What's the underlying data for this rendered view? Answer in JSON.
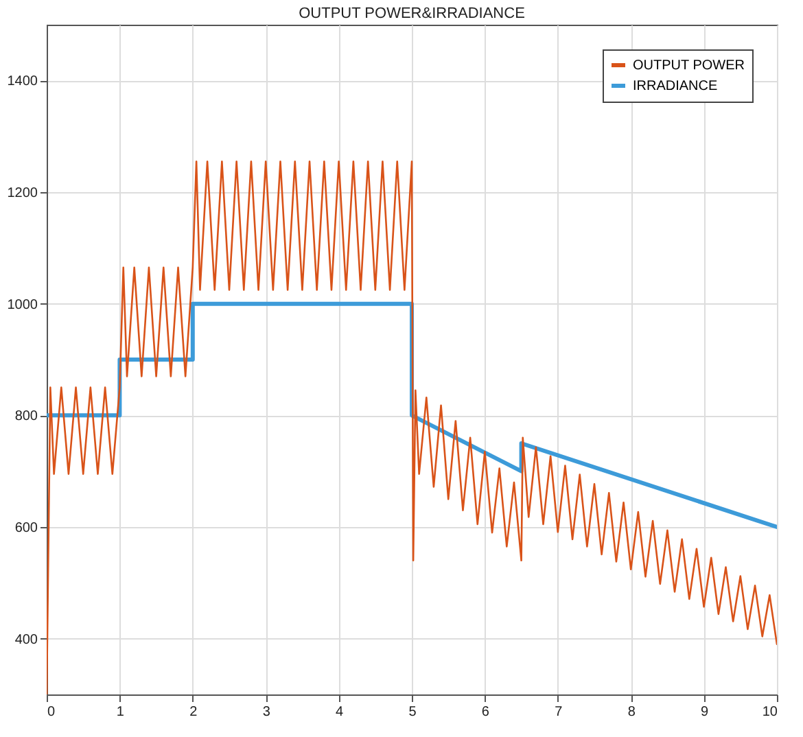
{
  "chart_data": {
    "type": "line",
    "title": "OUTPUT POWER&IRRADIANCE",
    "xlim": [
      0,
      10
    ],
    "xticks": [
      0,
      1,
      2,
      3,
      4,
      5,
      6,
      7,
      8,
      9,
      10
    ],
    "ylim": [
      300,
      1500
    ],
    "yticks": [
      400,
      600,
      800,
      1000,
      1200,
      1400
    ],
    "grid": true,
    "legend": "top right",
    "line_style": "solid",
    "series": [
      {
        "name": "OUTPUT POWER",
        "color": "#d95319",
        "x": [
          0,
          0.05,
          0.1,
          0.2,
          0.3,
          0.4,
          0.5,
          0.6,
          0.7,
          0.8,
          0.9,
          1.0,
          1.05,
          1.1,
          1.2,
          1.3,
          1.4,
          1.5,
          1.6,
          1.7,
          1.8,
          1.9,
          2.0,
          2.05,
          2.1,
          2.2,
          2.3,
          2.4,
          2.5,
          2.6,
          2.7,
          2.8,
          2.9,
          3.0,
          3.1,
          3.2,
          3.3,
          3.4,
          3.5,
          3.6,
          3.7,
          3.8,
          3.9,
          4.0,
          4.1,
          4.2,
          4.3,
          4.4,
          4.5,
          4.6,
          4.7,
          4.8,
          4.9,
          5.0,
          5.02,
          5.05,
          5.1,
          5.2,
          5.3,
          5.4,
          5.5,
          5.6,
          5.7,
          5.8,
          5.9,
          6.0,
          6.1,
          6.2,
          6.3,
          6.4,
          6.5,
          6.52,
          6.6,
          6.7,
          6.8,
          6.9,
          7.0,
          7.1,
          7.2,
          7.3,
          7.4,
          7.5,
          7.6,
          7.7,
          7.8,
          7.9,
          8.0,
          8.1,
          8.2,
          8.3,
          8.4,
          8.5,
          8.6,
          8.7,
          8.8,
          8.9,
          9.0,
          9.1,
          9.2,
          9.3,
          9.4,
          9.5,
          9.6,
          9.7,
          9.8,
          9.9,
          10.0
        ],
        "values": [
          300,
          850,
          695,
          850,
          695,
          850,
          695,
          850,
          695,
          850,
          695,
          850,
          1065,
          870,
          1065,
          870,
          1065,
          870,
          1065,
          870,
          1065,
          870,
          1065,
          1255,
          1025,
          1255,
          1025,
          1255,
          1025,
          1255,
          1025,
          1255,
          1025,
          1255,
          1025,
          1255,
          1025,
          1255,
          1025,
          1255,
          1025,
          1255,
          1025,
          1255,
          1025,
          1255,
          1025,
          1255,
          1025,
          1255,
          1025,
          1255,
          1025,
          1255,
          540,
          845,
          695,
          832,
          672,
          818,
          650,
          790,
          630,
          760,
          605,
          735,
          590,
          705,
          565,
          680,
          540,
          760,
          618,
          743,
          605,
          727,
          591,
          710,
          578,
          694,
          565,
          677,
          551,
          661,
          538,
          644,
          524,
          627,
          511,
          611,
          498,
          594,
          484,
          578,
          471,
          561,
          457,
          545,
          444,
          528,
          431,
          512,
          417,
          495,
          404,
          478,
          390
        ]
      },
      {
        "name": "IRRADIANCE",
        "color": "#3d9bd9",
        "x": [
          0,
          1,
          1,
          2,
          2,
          5,
          5,
          6.5,
          6.5,
          10
        ],
        "values": [
          800,
          800,
          900,
          900,
          1000,
          1000,
          800,
          700,
          750,
          600
        ]
      }
    ]
  }
}
